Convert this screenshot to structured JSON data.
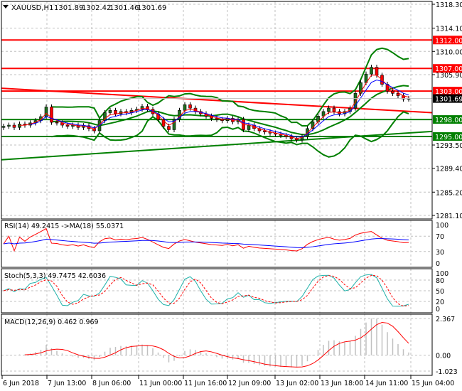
{
  "header": {
    "symbol": "XAUUSD,H1",
    "open": "1301.89",
    "high": "1302.42",
    "low": "1301.46",
    "close": "1301.69"
  },
  "colors": {
    "bull": "#1f6e1f",
    "bear": "#ff0000",
    "level_red": "#ff0000",
    "level_green": "#008000",
    "bands": "#008000",
    "ma_fast": "#ff0000",
    "ma_slow": "#0000ff",
    "rsi": "#ff0000",
    "rsi_ma": "#0000ff",
    "stoch_main": "#20b2aa",
    "stoch_signal": "#ff0000",
    "macd_hist": "#c0c0c0",
    "macd_signal": "#ff0000",
    "grid": "#c0c0c0"
  },
  "chart_data": [
    {
      "type": "candlestick",
      "title": "XAUUSD,H1",
      "ylim": [
        1281.1,
        1318.3
      ],
      "y_ticks": [
        "1318.30",
        "1314.10",
        "1310.00",
        "1305.90",
        "1293.50",
        "1289.40",
        "1285.20",
        "1281.10"
      ],
      "x_ticks": [
        "6 Jun 2018",
        "7 Jun 13:00",
        "8 Jun 06:00",
        "11 Jun 00:00",
        "11 Jun 16:00",
        "12 Jun 09:00",
        "13 Jun 02:00",
        "13 Jun 18:00",
        "14 Jun 11:00",
        "15 Jun 04:00"
      ],
      "grid": true,
      "closes": [
        1296.8,
        1297.0,
        1296.6,
        1297.2,
        1297.0,
        1297.4,
        1297.8,
        1298.5,
        1300.2,
        1297.5,
        1297.4,
        1297.0,
        1296.8,
        1297.0,
        1296.6,
        1296.9,
        1296.4,
        1296.0,
        1297.8,
        1299.2,
        1299.6,
        1299.0,
        1299.4,
        1299.2,
        1299.6,
        1299.8,
        1300.3,
        1299.8,
        1299.0,
        1298.0,
        1296.8,
        1296.2,
        1298.0,
        1299.6,
        1300.6,
        1300.0,
        1299.4,
        1299.0,
        1298.6,
        1298.2,
        1298.0,
        1297.8,
        1298.2,
        1297.6,
        1298.0,
        1296.2,
        1297.0,
        1296.4,
        1296.0,
        1295.8,
        1295.6,
        1295.4,
        1295.2,
        1295.0,
        1294.6,
        1294.4,
        1295.0,
        1296.4,
        1297.6,
        1298.6,
        1299.4,
        1300.0,
        1299.4,
        1299.0,
        1299.4,
        1300.0,
        1302.6,
        1304.5,
        1306.0,
        1307.2,
        1305.8,
        1304.2,
        1303.0,
        1302.6,
        1302.2,
        1301.6,
        1301.69
      ],
      "current_price": "1301.69",
      "levels": [
        {
          "price": "1312.00",
          "color": "red"
        },
        {
          "price": "1307.00",
          "color": "red"
        },
        {
          "price": "1303.00",
          "color": "red"
        },
        {
          "price": "1298.00",
          "color": "green"
        },
        {
          "price": "1295.00",
          "color": "green"
        }
      ],
      "trendlines": [
        {
          "color": "red",
          "start_price": 1303.5,
          "end_price": 1299.2
        },
        {
          "color": "green",
          "start_price": 1290.9,
          "end_price": 1295.9
        }
      ],
      "overlays": [
        "Bollinger Bands",
        "fast MA",
        "slow MA"
      ]
    },
    {
      "type": "line",
      "label": "RSI(14) 49.2415  ->MA(18) 55.0371",
      "ylim": [
        0,
        100
      ],
      "y_ticks": [
        "100",
        "70",
        "30",
        "0"
      ]
    },
    {
      "type": "line",
      "label": "Stoch(5,3,3) 49.7475 42.6036",
      "ylim": [
        0,
        100
      ],
      "y_ticks": [
        "100",
        "80",
        "50",
        "20",
        "0"
      ]
    },
    {
      "type": "bar",
      "label": "MACD(12,26,9) 0.462 0.969",
      "ylim": [
        -1.023,
        2.367
      ],
      "y_ticks": [
        "2.367",
        "0.00",
        "-1.023"
      ]
    }
  ]
}
